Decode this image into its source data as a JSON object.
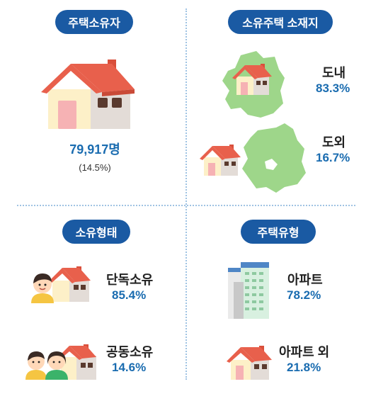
{
  "owners": {
    "title": "주택소유자",
    "count": "79,917명",
    "ratio": "(14.5%)"
  },
  "location": {
    "title": "소유주택 소재지",
    "items": [
      {
        "label": "도내",
        "value": "83.3%"
      },
      {
        "label": "도외",
        "value": "16.7%"
      }
    ]
  },
  "ownership_type": {
    "title": "소유형태",
    "items": [
      {
        "label": "단독소유",
        "value": "85.4%"
      },
      {
        "label": "공동소유",
        "value": "14.6%"
      }
    ]
  },
  "housing_type": {
    "title": "주택유형",
    "items": [
      {
        "label": "아파트",
        "value": "78.2%"
      },
      {
        "label": "아파트 외",
        "value": "21.8%"
      }
    ]
  },
  "colors": {
    "accent": "#1a5aa3",
    "value": "#1a6cb0",
    "roof": "#e8604c",
    "map": "#9ed68a"
  }
}
